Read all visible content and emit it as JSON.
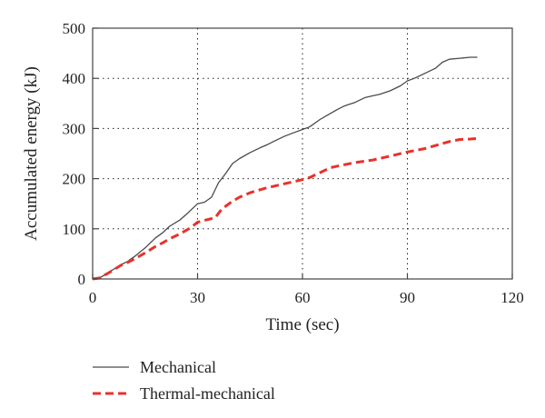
{
  "chart_data": {
    "type": "line",
    "title": "",
    "xlabel": "Time (sec)",
    "ylabel": "Accumulated energy (kJ)",
    "xlim": [
      0,
      120
    ],
    "ylim": [
      0,
      500
    ],
    "x_ticks": [
      "0",
      "30",
      "60",
      "90",
      "120"
    ],
    "y_ticks": [
      "0",
      "100",
      "200",
      "300",
      "400",
      "500"
    ],
    "grid": "dotted",
    "legend_position": "bottom",
    "series": [
      {
        "name": "Mechanical",
        "color": "#4a4a4a",
        "style": "solid",
        "x": [
          0,
          2,
          5,
          8,
          10,
          12,
          15,
          18,
          20,
          22,
          25,
          27,
          30,
          32,
          34,
          36,
          38,
          40,
          42,
          45,
          48,
          50,
          52,
          55,
          58,
          60,
          62,
          65,
          68,
          70,
          72,
          75,
          78,
          80,
          82,
          85,
          88,
          90,
          92,
          95,
          98,
          100,
          102,
          105,
          108,
          110
        ],
        "y": [
          0,
          2,
          15,
          28,
          35,
          45,
          62,
          82,
          92,
          105,
          118,
          130,
          150,
          153,
          163,
          192,
          210,
          230,
          240,
          252,
          262,
          268,
          275,
          285,
          293,
          298,
          303,
          318,
          330,
          338,
          345,
          352,
          362,
          365,
          368,
          375,
          385,
          395,
          400,
          410,
          420,
          432,
          438,
          440,
          442,
          442
        ]
      },
      {
        "name": "Thermal-mechanical",
        "color": "#e8322b",
        "style": "dashed",
        "x": [
          0,
          2,
          5,
          8,
          10,
          12,
          15,
          18,
          20,
          22,
          25,
          28,
          30,
          32,
          35,
          37,
          38,
          40,
          42,
          45,
          48,
          50,
          55,
          60,
          62,
          65,
          68,
          70,
          75,
          80,
          85,
          90,
          95,
          100,
          102,
          105,
          108,
          110
        ],
        "y": [
          0,
          2,
          14,
          27,
          33,
          40,
          52,
          65,
          72,
          80,
          90,
          102,
          113,
          117,
          122,
          140,
          145,
          155,
          163,
          172,
          178,
          182,
          190,
          198,
          202,
          212,
          222,
          225,
          232,
          237,
          245,
          253,
          260,
          270,
          274,
          278,
          279,
          280
        ]
      }
    ]
  }
}
